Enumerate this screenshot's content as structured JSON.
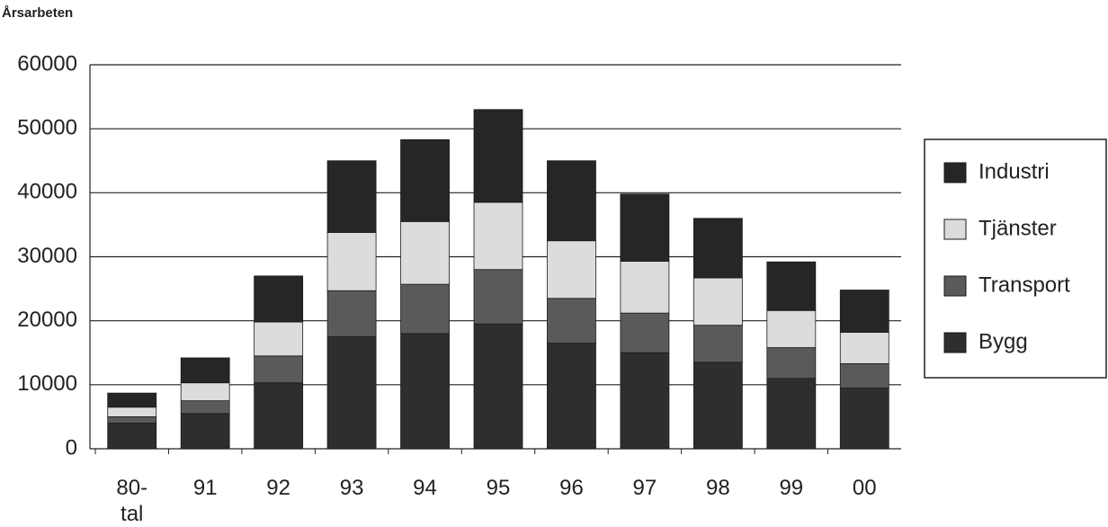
{
  "chart_data": {
    "type": "stacked_bar",
    "y_label": "Årsarbeten",
    "categories": [
      "80-tal",
      "91",
      "92",
      "93",
      "94",
      "95",
      "96",
      "97",
      "98",
      "99",
      "00"
    ],
    "series": [
      {
        "name": "Bygg",
        "color": "#2e2e2e",
        "values": [
          4000,
          5500,
          10300,
          17500,
          18000,
          19500,
          16500,
          15000,
          13500,
          11000,
          9500
        ]
      },
      {
        "name": "Transport",
        "color": "#5a5a5a",
        "values": [
          1000,
          2000,
          4200,
          7200,
          7700,
          8500,
          7000,
          6200,
          5800,
          4800,
          3800
        ]
      },
      {
        "name": "Tjänster",
        "color": "#dcdcdc",
        "values": [
          1500,
          2800,
          5300,
          9100,
          9800,
          10500,
          9000,
          8100,
          7400,
          5800,
          4900
        ]
      },
      {
        "name": "Industri",
        "color": "#262626",
        "values": [
          2200,
          3900,
          7200,
          11200,
          12800,
          14500,
          12500,
          10500,
          9300,
          7600,
          6600
        ]
      }
    ],
    "ylim": [
      0,
      60000
    ],
    "yticks": [
      0,
      10000,
      20000,
      30000,
      40000,
      50000,
      60000
    ],
    "grid": true
  }
}
